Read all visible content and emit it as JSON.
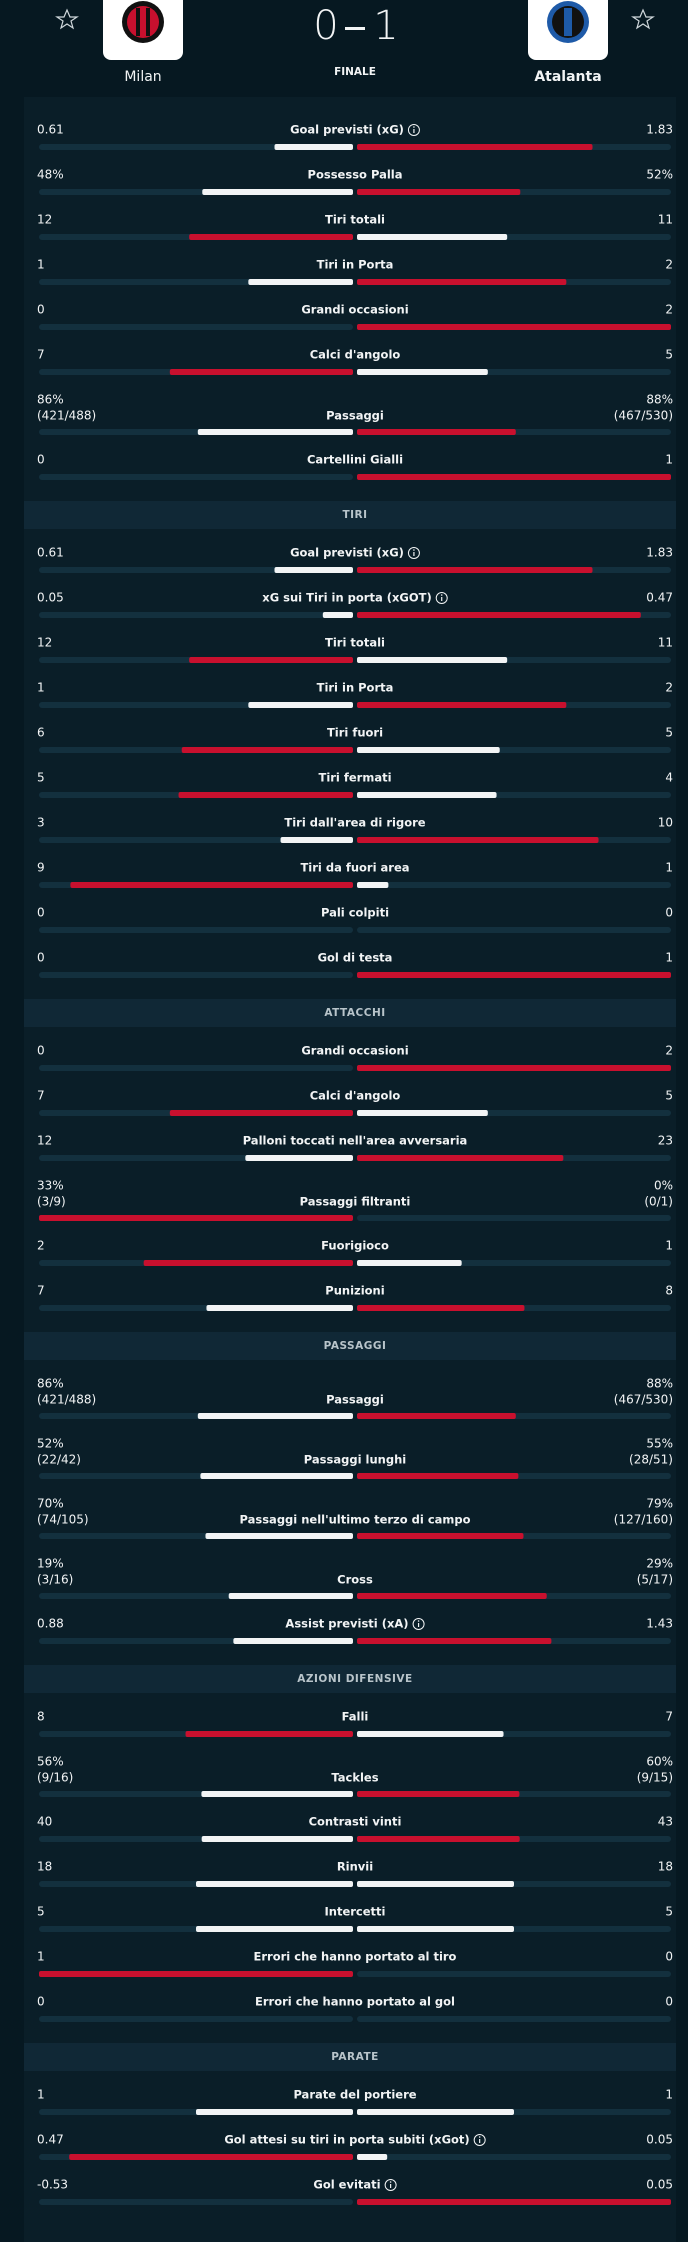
{
  "header": {
    "home_team": "Milan",
    "away_team": "Atalanta",
    "home_score": 0,
    "away_score": 1,
    "status": "FINALE"
  },
  "sections": [
    {
      "stats": [
        {
          "label": "Goal previsti (xG)",
          "home": 0.61,
          "away": 1.83,
          "info": true
        },
        {
          "label": "Possesso Palla",
          "home": 48,
          "home_label": "48%",
          "away": 52,
          "away_label": "52%"
        },
        {
          "label": "Tiri totali",
          "home": 12,
          "away": 11
        },
        {
          "label": "Tiri in Porta",
          "home": 1,
          "away": 2
        },
        {
          "label": "Grandi occasioni",
          "home": 0,
          "away": 2
        },
        {
          "label": "Calci d'angolo",
          "home": 7,
          "away": 5
        },
        {
          "label": "Passaggi",
          "home": 86,
          "home_label": "86%",
          "home_detail": "(421/488)",
          "away": 88,
          "away_label": "88%",
          "away_detail": "(467/530)"
        },
        {
          "label": "Cartellini Gialli",
          "home": 0,
          "away": 1
        }
      ]
    },
    {
      "title": "TIRI",
      "stats": [
        {
          "label": "Goal previsti (xG)",
          "home": 0.61,
          "away": 1.83,
          "info": true
        },
        {
          "label": "xG sui Tiri in porta (xGOT)",
          "home": 0.05,
          "away": 0.47,
          "info": true
        },
        {
          "label": "Tiri totali",
          "home": 12,
          "away": 11
        },
        {
          "label": "Tiri in Porta",
          "home": 1,
          "away": 2
        },
        {
          "label": "Tiri fuori",
          "home": 6,
          "away": 5
        },
        {
          "label": "Tiri fermati",
          "home": 5,
          "away": 4
        },
        {
          "label": "Tiri dall'area di rigore",
          "home": 3,
          "away": 10
        },
        {
          "label": "Tiri da fuori area",
          "home": 9,
          "away": 1
        },
        {
          "label": "Pali colpiti",
          "home": 0,
          "away": 0
        },
        {
          "label": "Gol di testa",
          "home": 0,
          "away": 1
        }
      ]
    },
    {
      "title": "ATTACCHI",
      "stats": [
        {
          "label": "Grandi occasioni",
          "home": 0,
          "away": 2
        },
        {
          "label": "Calci d'angolo",
          "home": 7,
          "away": 5
        },
        {
          "label": "Palloni toccati nell'area avversaria",
          "home": 12,
          "away": 23
        },
        {
          "label": "Passaggi filtranti",
          "home": 33,
          "home_label": "33%",
          "home_detail": "(3/9)",
          "away": 0,
          "away_label": "0%",
          "away_detail": "(0/1)"
        },
        {
          "label": "Fuorigioco",
          "home": 2,
          "away": 1
        },
        {
          "label": "Punizioni",
          "home": 7,
          "away": 8
        }
      ]
    },
    {
      "title": "PASSAGGI",
      "stats": [
        {
          "label": "Passaggi",
          "home": 86,
          "home_label": "86%",
          "home_detail": "(421/488)",
          "away": 88,
          "away_label": "88%",
          "away_detail": "(467/530)"
        },
        {
          "label": "Passaggi lunghi",
          "home": 52,
          "home_label": "52%",
          "home_detail": "(22/42)",
          "away": 55,
          "away_label": "55%",
          "away_detail": "(28/51)"
        },
        {
          "label": "Passaggi nell'ultimo terzo di campo",
          "home": 70,
          "home_label": "70%",
          "home_detail": "(74/105)",
          "away": 79,
          "away_label": "79%",
          "away_detail": "(127/160)"
        },
        {
          "label": "Cross",
          "home": 19,
          "home_label": "19%",
          "home_detail": "(3/16)",
          "away": 29,
          "away_label": "29%",
          "away_detail": "(5/17)"
        },
        {
          "label": "Assist previsti (xA)",
          "home": 0.88,
          "away": 1.43,
          "info": true
        }
      ]
    },
    {
      "title": "AZIONI DIFENSIVE",
      "stats": [
        {
          "label": "Falli",
          "home": 8,
          "away": 7
        },
        {
          "label": "Tackles",
          "home": 56,
          "home_label": "56%",
          "home_detail": "(9/16)",
          "away": 60,
          "away_label": "60%",
          "away_detail": "(9/15)"
        },
        {
          "label": "Contrasti vinti",
          "home": 40,
          "away": 43
        },
        {
          "label": "Rinvii",
          "home": 18,
          "away": 18
        },
        {
          "label": "Intercetti",
          "home": 5,
          "away": 5
        },
        {
          "label": "Errori che hanno portato al tiro",
          "home": 1,
          "away": 0
        },
        {
          "label": "Errori che hanno portato al gol",
          "home": 0,
          "away": 0
        }
      ]
    },
    {
      "title": "PARATE",
      "stats": [
        {
          "label": "Parate del portiere",
          "home": 1,
          "away": 1
        },
        {
          "label": "Gol attesi su tiri in porta subiti (xGot)",
          "home": 0.47,
          "away": 0.05,
          "info": true
        },
        {
          "label": "Gol evitati",
          "home": -0.53,
          "away": 0.05,
          "info": true
        }
      ]
    }
  ]
}
